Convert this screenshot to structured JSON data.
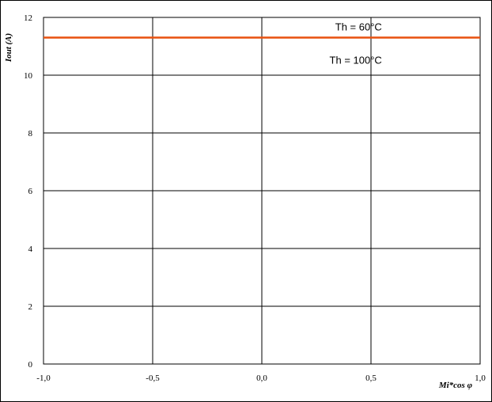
{
  "chart_data": {
    "type": "line",
    "title": "",
    "xlabel": "Mi*cos φ",
    "ylabel": "Iout (A)",
    "xlim": [
      -1.0,
      1.0
    ],
    "ylim": [
      0,
      12
    ],
    "x_ticks": [
      -1.0,
      -0.5,
      0.0,
      0.5,
      1.0
    ],
    "x_tick_labels": [
      "-1,0",
      "-0,5",
      "0,0",
      "0,5",
      "1,0"
    ],
    "y_ticks": [
      0,
      2,
      4,
      6,
      8,
      10,
      12
    ],
    "y_tick_labels": [
      "0",
      "2",
      "4",
      "6",
      "8",
      "10",
      "12"
    ],
    "grid": true,
    "legend": "none",
    "series": [
      {
        "x": [
          -1.0,
          1.0
        ],
        "values": [
          11.3,
          11.3
        ],
        "color": "#e8510f"
      }
    ],
    "annotations": [
      {
        "text": "Th = 60°C",
        "x": 0.55,
        "y": 11.55
      },
      {
        "text": "Th = 100°C",
        "x": 0.55,
        "y": 10.4
      }
    ]
  }
}
